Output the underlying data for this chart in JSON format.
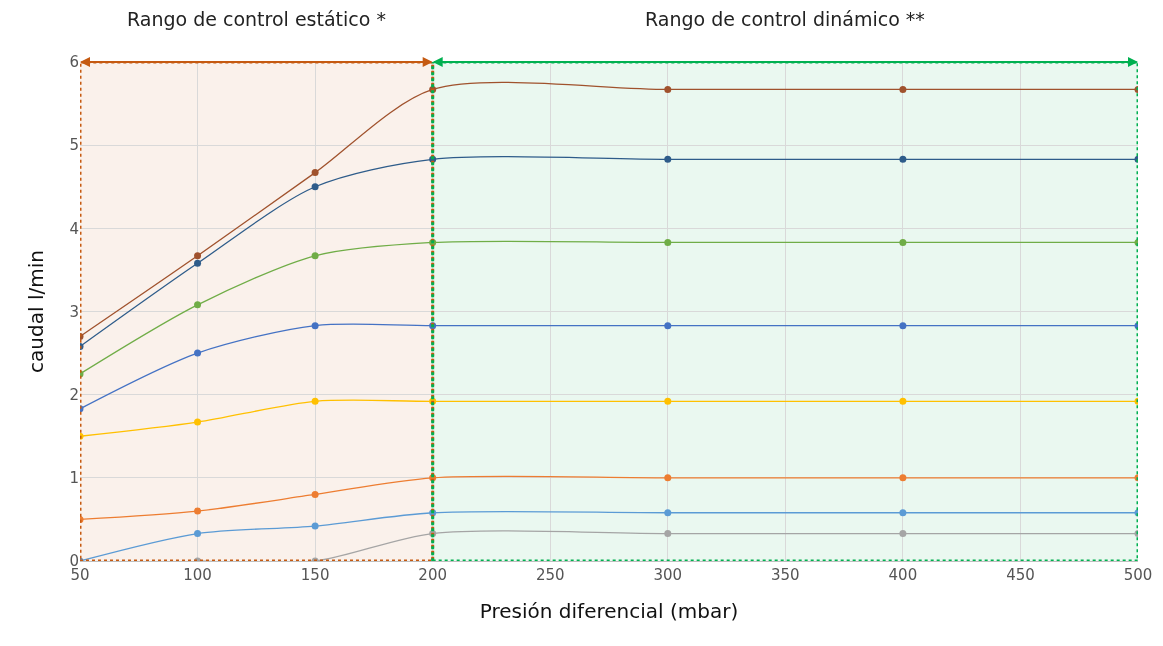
{
  "chart_data": {
    "type": "line",
    "xlabel": "Presión diferencial (mbar)",
    "ylabel": "caudal l/min",
    "x": [
      50,
      100,
      150,
      200,
      300,
      400,
      500
    ],
    "series": [
      {
        "color": "#a0522d",
        "values": [
          2.7,
          3.67,
          4.67,
          5.67,
          5.67,
          5.67,
          5.67
        ]
      },
      {
        "color": "#2e5c8a",
        "values": [
          2.58,
          3.58,
          4.5,
          4.83,
          4.83,
          4.83,
          4.83
        ]
      },
      {
        "color": "#70ad47",
        "values": [
          2.25,
          3.08,
          3.67,
          3.83,
          3.83,
          3.83,
          3.83
        ]
      },
      {
        "color": "#4472c4",
        "values": [
          1.83,
          2.5,
          2.83,
          2.83,
          2.83,
          2.83,
          2.83
        ]
      },
      {
        "color": "#ffc000",
        "values": [
          1.5,
          1.67,
          1.92,
          1.92,
          1.92,
          1.92,
          1.92
        ]
      },
      {
        "color": "#ed7d31",
        "values": [
          0.5,
          0.6,
          0.8,
          1.0,
          1.0,
          1.0,
          1.0
        ]
      },
      {
        "color": "#5b9bd5",
        "values": [
          0,
          0.33,
          0.42,
          0.58,
          0.58,
          0.58,
          0.58
        ]
      },
      {
        "color": "#a5a5a5",
        "values": [
          null,
          0,
          0,
          0.33,
          0.33,
          0.33,
          0.33
        ]
      }
    ],
    "xlim": [
      50,
      500
    ],
    "xticks": [
      50,
      100,
      150,
      200,
      250,
      300,
      350,
      400,
      450,
      500
    ],
    "ylim": [
      0,
      6
    ],
    "yticks": [
      0,
      1,
      2,
      3,
      4,
      5,
      6
    ],
    "bands": [
      {
        "axis": "x",
        "from": 50,
        "to": 200,
        "label": "Rango de control estático *",
        "color": "#c55a11"
      },
      {
        "axis": "x",
        "from": 200,
        "to": 500,
        "label": "Rango de control dinámico **",
        "color": "#00b050"
      }
    ],
    "grid": true,
    "marker": "circle",
    "line_style": "solid"
  }
}
